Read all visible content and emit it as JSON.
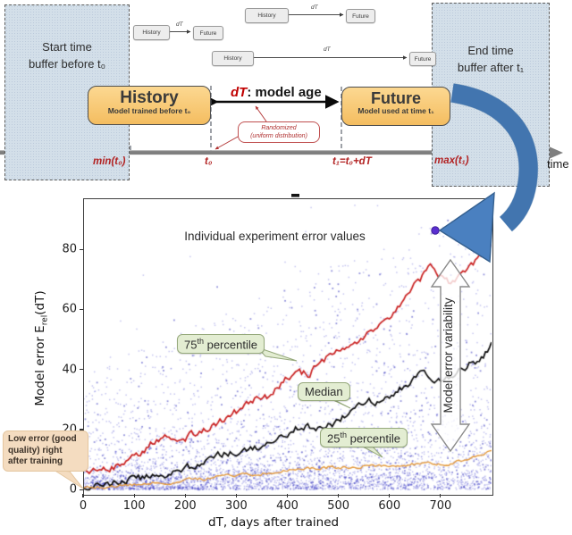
{
  "diagram": {
    "start_buffer_label": "Start time\nbuffer before t₀",
    "end_buffer_label": "End time\nbuffer after t₁",
    "mini": {
      "history": "History",
      "dt": "dT",
      "future": "Future"
    },
    "history_box": {
      "title": "History",
      "subtitle": "Model trained before t₀"
    },
    "future_box": {
      "title": "Future",
      "subtitle": "Model used at time t₁"
    },
    "dt_age": {
      "dt": "dT",
      "rest": ": model age"
    },
    "randomized_note": "Randomized\n(uniform distribution)",
    "timeline": {
      "min_t0": "min(t₀)",
      "t0": "t₀",
      "t1": "t₁=t₀+dT",
      "max_t1": "max(t₁)",
      "time": "time"
    },
    "colors": {
      "buffer_fill": "#d3dfe9",
      "box_orange": "#f7c468",
      "annotation_red": "#b22222",
      "swoosh_blue": "#4a80c0"
    }
  },
  "chart_data": {
    "type": "scatter",
    "title": "",
    "xlabel": "dT, days after trained",
    "ylabel_parts": {
      "pre": "Model error E",
      "sub": "rel",
      "post": "(dT)"
    },
    "xlim": [
      0,
      800
    ],
    "ylim": [
      -1.5,
      97
    ],
    "xticks": [
      0,
      100,
      200,
      300,
      400,
      500,
      600,
      700
    ],
    "yticks": [
      0,
      20,
      40,
      60,
      80
    ],
    "grid": false,
    "scatter": {
      "description": "individual experiment error values, dense near 0 and spreading upward as dT grows",
      "n": 4600,
      "seed": 13,
      "color": "rgba(80,80,210,0.33)",
      "color_dark": "rgba(55,55,190,0.55)"
    },
    "series": [
      {
        "name": "75th percentile",
        "color": "#c92020",
        "x": [
          0,
          20,
          40,
          60,
          80,
          100,
          120,
          140,
          160,
          180,
          200,
          220,
          240,
          260,
          280,
          300,
          320,
          340,
          360,
          380,
          400,
          420,
          440,
          460,
          480,
          500,
          520,
          540,
          560,
          580,
          600,
          620,
          640,
          660,
          680,
          700,
          720,
          740,
          760,
          780,
          800
        ],
        "y": [
          6,
          6.5,
          7,
          7.5,
          9,
          10.5,
          13,
          16.5,
          17,
          16.5,
          17.5,
          19,
          20.5,
          22,
          24,
          26,
          28.5,
          30,
          30.5,
          34,
          37.5,
          39,
          38.5,
          41,
          44,
          46.5,
          48,
          50,
          53,
          55,
          58,
          62,
          66,
          70,
          75,
          71,
          69,
          72,
          75,
          78,
          82
        ]
      },
      {
        "name": "Median",
        "color": "#0c0c0c",
        "x": [
          0,
          20,
          40,
          60,
          80,
          100,
          120,
          140,
          160,
          180,
          200,
          220,
          240,
          260,
          280,
          300,
          320,
          340,
          360,
          380,
          400,
          420,
          440,
          460,
          480,
          500,
          520,
          540,
          560,
          580,
          600,
          620,
          640,
          660,
          680,
          700,
          720,
          740,
          760,
          780,
          800
        ],
        "y": [
          1.5,
          1.5,
          2,
          2.5,
          3,
          3.5,
          4,
          4.5,
          5,
          6,
          7,
          8,
          9.5,
          11,
          12.5,
          13,
          13.5,
          14,
          14.5,
          16,
          18,
          20.5,
          21,
          20.5,
          21.5,
          23,
          26,
          29,
          30,
          28.5,
          31,
          33.5,
          36,
          38.5,
          37,
          36.5,
          38,
          40,
          42,
          44,
          48
        ]
      },
      {
        "name": "25th percentile",
        "color": "#e49a3c",
        "x": [
          0,
          40,
          80,
          120,
          160,
          200,
          240,
          280,
          320,
          360,
          400,
          440,
          480,
          520,
          560,
          600,
          640,
          680,
          720,
          760,
          800
        ],
        "y": [
          0.5,
          1,
          1.5,
          2,
          2.5,
          3,
          3.5,
          4.5,
          5,
          5.5,
          6.5,
          7,
          7.5,
          7.5,
          8,
          8,
          8.5,
          8.5,
          9,
          10.5,
          13
        ]
      }
    ],
    "annotations": {
      "scatter_caption": "Individual experiment error values",
      "p75": {
        "value": "75",
        "sup": "th",
        "rest": " percentile"
      },
      "median": "Median",
      "p25": {
        "value": "25",
        "sup": "th",
        "rest": " percentile"
      },
      "variability": "Model error variability",
      "low_error_note": "Low error (good quality) right after training",
      "outlier_point": {
        "x": 690,
        "y": 86,
        "color": "#5a2ed0"
      }
    }
  }
}
